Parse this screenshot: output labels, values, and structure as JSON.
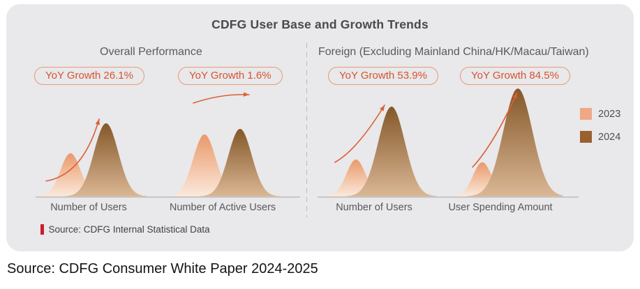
{
  "card": {
    "title": "CDFG User Base and Growth Trends",
    "source_note": "Source: CDFG Internal Statistical Data"
  },
  "caption": "Source: CDFG Consumer White Paper 2024-2025",
  "chart_data": {
    "type": "area",
    "note": "Stylized mountain/peak comparison chart; no numeric axis shown, heights are relative pixel magnitudes",
    "title": "CDFG User Base and Growth Trends",
    "series_years": [
      "2023",
      "2024"
    ],
    "legend_position": "right",
    "arrow_color": "#dd5f35",
    "gradients": {
      "2023": [
        "#e9996a",
        "#fbe9db"
      ],
      "2024": [
        "#845729",
        "#dab794"
      ]
    },
    "legend": [
      {
        "label": "2023",
        "color": "#efa886"
      },
      {
        "label": "2024",
        "color": "#99612f"
      }
    ],
    "sections": [
      {
        "title": "Overall Performance",
        "metrics": [
          {
            "label": "Number of Users",
            "yoy_label": "YoY Growth 26.1%",
            "yoy_growth_pct": 26.1,
            "relative_heights": {
              "2023": 62,
              "2024": 105
            }
          },
          {
            "label": "Number of Active Users",
            "yoy_label": "YoY Growth 1.6%",
            "yoy_growth_pct": 1.6,
            "relative_heights": {
              "2023": 89,
              "2024": 97
            }
          }
        ]
      },
      {
        "title": "Foreign (Excluding Mainland China/HK/Macau/Taiwan)",
        "metrics": [
          {
            "label": "Number of Users",
            "yoy_label": "YoY Growth 53.9%",
            "yoy_growth_pct": 53.9,
            "relative_heights": {
              "2023": 53,
              "2024": 129
            }
          },
          {
            "label": "User Spending Amount",
            "yoy_label": "YoY Growth 84.5%",
            "yoy_growth_pct": 84.5,
            "relative_heights": {
              "2023": 49,
              "2024": 155
            }
          }
        ]
      }
    ]
  }
}
